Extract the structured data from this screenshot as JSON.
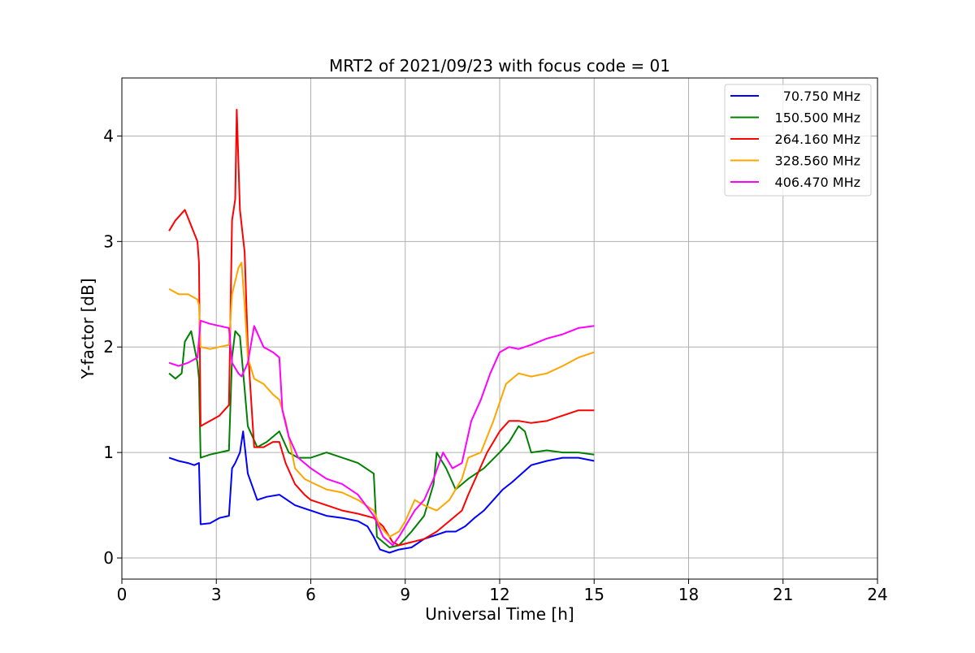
{
  "chart_data": {
    "type": "line",
    "title": "MRT2 of 2021/09/23 with focus code = 01",
    "xlabel": "Universal Time [h]",
    "ylabel": "Y-factor [dB]",
    "xlim": [
      0,
      24
    ],
    "ylim": [
      -0.2,
      4.55
    ],
    "xticks": [
      0,
      3,
      6,
      9,
      12,
      15,
      18,
      21,
      24
    ],
    "yticks": [
      0,
      1,
      2,
      3,
      4
    ],
    "grid": true,
    "legend_position": "top-right",
    "series": [
      {
        "name": "70.750 MHz",
        "color": "#0000ff",
        "x": [
          1.5,
          1.8,
          2.1,
          2.3,
          2.45,
          2.5,
          2.8,
          3.1,
          3.4,
          3.5,
          3.6,
          3.75,
          3.85,
          4.0,
          4.3,
          4.6,
          5.0,
          5.5,
          6.0,
          6.5,
          7.0,
          7.5,
          7.8,
          8.0,
          8.2,
          8.5,
          8.8,
          9.2,
          9.6,
          10.0,
          10.3,
          10.6,
          10.9,
          11.2,
          11.5,
          11.8,
          12.1,
          12.4,
          12.7,
          13.0,
          13.5,
          14.0,
          14.5,
          15.0
        ],
        "y": [
          0.95,
          0.92,
          0.9,
          0.88,
          0.9,
          0.32,
          0.33,
          0.38,
          0.4,
          0.85,
          0.9,
          1.0,
          1.2,
          0.8,
          0.55,
          0.58,
          0.6,
          0.5,
          0.45,
          0.4,
          0.38,
          0.35,
          0.3,
          0.2,
          0.08,
          0.05,
          0.08,
          0.1,
          0.18,
          0.22,
          0.25,
          0.25,
          0.3,
          0.38,
          0.45,
          0.55,
          0.65,
          0.72,
          0.8,
          0.88,
          0.92,
          0.95,
          0.95,
          0.92
        ]
      },
      {
        "name": "150.500 MHz",
        "color": "#008000",
        "x": [
          1.5,
          1.7,
          1.9,
          2.0,
          2.2,
          2.4,
          2.45,
          2.5,
          2.8,
          3.1,
          3.4,
          3.5,
          3.6,
          3.75,
          3.9,
          4.0,
          4.3,
          4.6,
          5.0,
          5.3,
          5.6,
          6.0,
          6.5,
          7.0,
          7.5,
          8.0,
          8.1,
          8.3,
          8.5,
          8.8,
          9.2,
          9.6,
          9.9,
          10.0,
          10.3,
          10.6,
          11.0,
          11.5,
          12.0,
          12.3,
          12.6,
          12.8,
          13.0,
          13.5,
          14.0,
          14.5,
          15.0
        ],
        "y": [
          1.75,
          1.7,
          1.75,
          2.05,
          2.15,
          1.85,
          1.7,
          0.95,
          0.98,
          1.0,
          1.02,
          1.9,
          2.15,
          2.1,
          1.6,
          1.25,
          1.05,
          1.1,
          1.2,
          1.0,
          0.95,
          0.95,
          1.0,
          0.95,
          0.9,
          0.8,
          0.2,
          0.15,
          0.1,
          0.12,
          0.25,
          0.4,
          0.7,
          1.0,
          0.85,
          0.65,
          0.75,
          0.85,
          1.0,
          1.1,
          1.25,
          1.2,
          1.0,
          1.02,
          1.0,
          1.0,
          0.98
        ]
      },
      {
        "name": "264.160 MHz",
        "color": "#ff0000",
        "x": [
          1.5,
          1.7,
          2.0,
          2.2,
          2.4,
          2.45,
          2.5,
          2.8,
          3.1,
          3.4,
          3.5,
          3.6,
          3.65,
          3.75,
          3.9,
          4.0,
          4.2,
          4.5,
          4.8,
          5.0,
          5.2,
          5.5,
          5.8,
          6.0,
          6.5,
          7.0,
          7.5,
          8.0,
          8.3,
          8.6,
          8.8,
          9.2,
          9.6,
          10.0,
          10.4,
          10.8,
          11.0,
          11.3,
          11.6,
          12.0,
          12.3,
          12.6,
          13.0,
          13.5,
          14.0,
          14.5,
          15.0
        ],
        "y": [
          3.1,
          3.2,
          3.3,
          3.15,
          3.0,
          2.8,
          1.25,
          1.3,
          1.35,
          1.45,
          3.2,
          3.4,
          4.25,
          3.3,
          2.9,
          2.0,
          1.05,
          1.05,
          1.1,
          1.1,
          0.9,
          0.7,
          0.6,
          0.55,
          0.5,
          0.45,
          0.42,
          0.38,
          0.3,
          0.15,
          0.12,
          0.15,
          0.18,
          0.25,
          0.35,
          0.45,
          0.6,
          0.8,
          1.0,
          1.2,
          1.3,
          1.3,
          1.28,
          1.3,
          1.35,
          1.4,
          1.4
        ]
      },
      {
        "name": "328.560 MHz",
        "color": "#ffa500",
        "x": [
          1.5,
          1.8,
          2.1,
          2.4,
          2.45,
          2.5,
          2.8,
          3.1,
          3.4,
          3.5,
          3.7,
          3.8,
          3.9,
          4.0,
          4.2,
          4.5,
          4.8,
          5.0,
          5.2,
          5.5,
          5.8,
          6.0,
          6.5,
          7.0,
          7.5,
          8.0,
          8.2,
          8.5,
          8.8,
          9.0,
          9.3,
          9.6,
          10.0,
          10.4,
          10.8,
          11.0,
          11.4,
          11.8,
          12.2,
          12.6,
          13.0,
          13.5,
          14.0,
          14.5,
          15.0
        ],
        "y": [
          2.55,
          2.5,
          2.5,
          2.45,
          2.4,
          2.0,
          1.98,
          2.0,
          2.02,
          2.5,
          2.75,
          2.8,
          2.4,
          1.9,
          1.7,
          1.65,
          1.55,
          1.5,
          1.3,
          0.85,
          0.75,
          0.72,
          0.65,
          0.62,
          0.55,
          0.45,
          0.3,
          0.2,
          0.25,
          0.35,
          0.55,
          0.5,
          0.45,
          0.55,
          0.75,
          0.95,
          1.0,
          1.3,
          1.65,
          1.75,
          1.72,
          1.75,
          1.82,
          1.9,
          1.95
        ]
      },
      {
        "name": "406.470 MHz",
        "color": "#ff00ff",
        "x": [
          1.5,
          1.8,
          2.1,
          2.4,
          2.5,
          2.8,
          3.1,
          3.4,
          3.5,
          3.7,
          3.8,
          4.0,
          4.2,
          4.5,
          4.8,
          5.0,
          5.1,
          5.3,
          5.6,
          6.0,
          6.5,
          7.0,
          7.5,
          8.0,
          8.3,
          8.6,
          8.8,
          9.0,
          9.3,
          9.6,
          9.9,
          10.2,
          10.5,
          10.8,
          11.1,
          11.4,
          11.7,
          12.0,
          12.3,
          12.6,
          13.0,
          13.5,
          14.0,
          14.5,
          15.0
        ],
        "y": [
          1.85,
          1.82,
          1.85,
          1.9,
          2.25,
          2.22,
          2.2,
          2.18,
          1.85,
          1.75,
          1.72,
          1.85,
          2.2,
          2.0,
          1.95,
          1.9,
          1.4,
          1.15,
          0.95,
          0.85,
          0.75,
          0.7,
          0.6,
          0.4,
          0.2,
          0.12,
          0.2,
          0.3,
          0.45,
          0.55,
          0.75,
          1.0,
          0.85,
          0.9,
          1.3,
          1.5,
          1.75,
          1.95,
          2.0,
          1.98,
          2.02,
          2.08,
          2.12,
          2.18,
          2.2
        ]
      }
    ]
  }
}
